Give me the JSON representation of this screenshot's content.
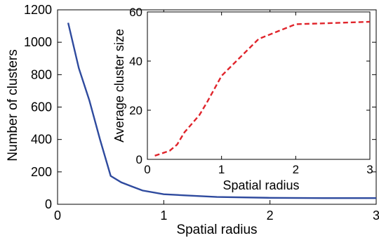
{
  "chart_data": [
    {
      "type": "line",
      "title": "",
      "xlabel": "Spatial radius",
      "ylabel": "Number of clusters",
      "xlim": [
        0,
        3
      ],
      "ylim": [
        0,
        1200
      ],
      "xticks": [
        0,
        1,
        2,
        3
      ],
      "yticks": [
        0,
        200,
        400,
        600,
        800,
        1000,
        1200
      ],
      "grid": false,
      "color": "#2e4a9e",
      "line_style": "solid",
      "series": [
        {
          "x": [
            0.1,
            0.2,
            0.3,
            0.4,
            0.5,
            0.6,
            0.7,
            0.8,
            1.0,
            1.2,
            1.5,
            2.0,
            2.5,
            3.0
          ],
          "values": [
            1120,
            840,
            640,
            400,
            175,
            135,
            110,
            85,
            62,
            55,
            45,
            40,
            38,
            38
          ]
        }
      ]
    },
    {
      "type": "line",
      "title": "",
      "xlabel": "Spatial radius",
      "ylabel": "Average cluster size",
      "xlim": [
        0,
        3
      ],
      "ylim": [
        0,
        60
      ],
      "xticks": [
        0,
        1,
        2,
        3
      ],
      "yticks": [
        0,
        20,
        40,
        60
      ],
      "grid": false,
      "color": "#e0242b",
      "line_style": "dashed",
      "series": [
        {
          "x": [
            0.1,
            0.2,
            0.3,
            0.4,
            0.5,
            0.6,
            0.7,
            0.8,
            1.0,
            1.2,
            1.5,
            2.0,
            2.5,
            3.0
          ],
          "values": [
            1.5,
            2.5,
            3.5,
            6,
            11,
            14.5,
            18,
            23,
            34,
            40,
            49,
            55,
            55.5,
            56
          ]
        }
      ]
    }
  ]
}
